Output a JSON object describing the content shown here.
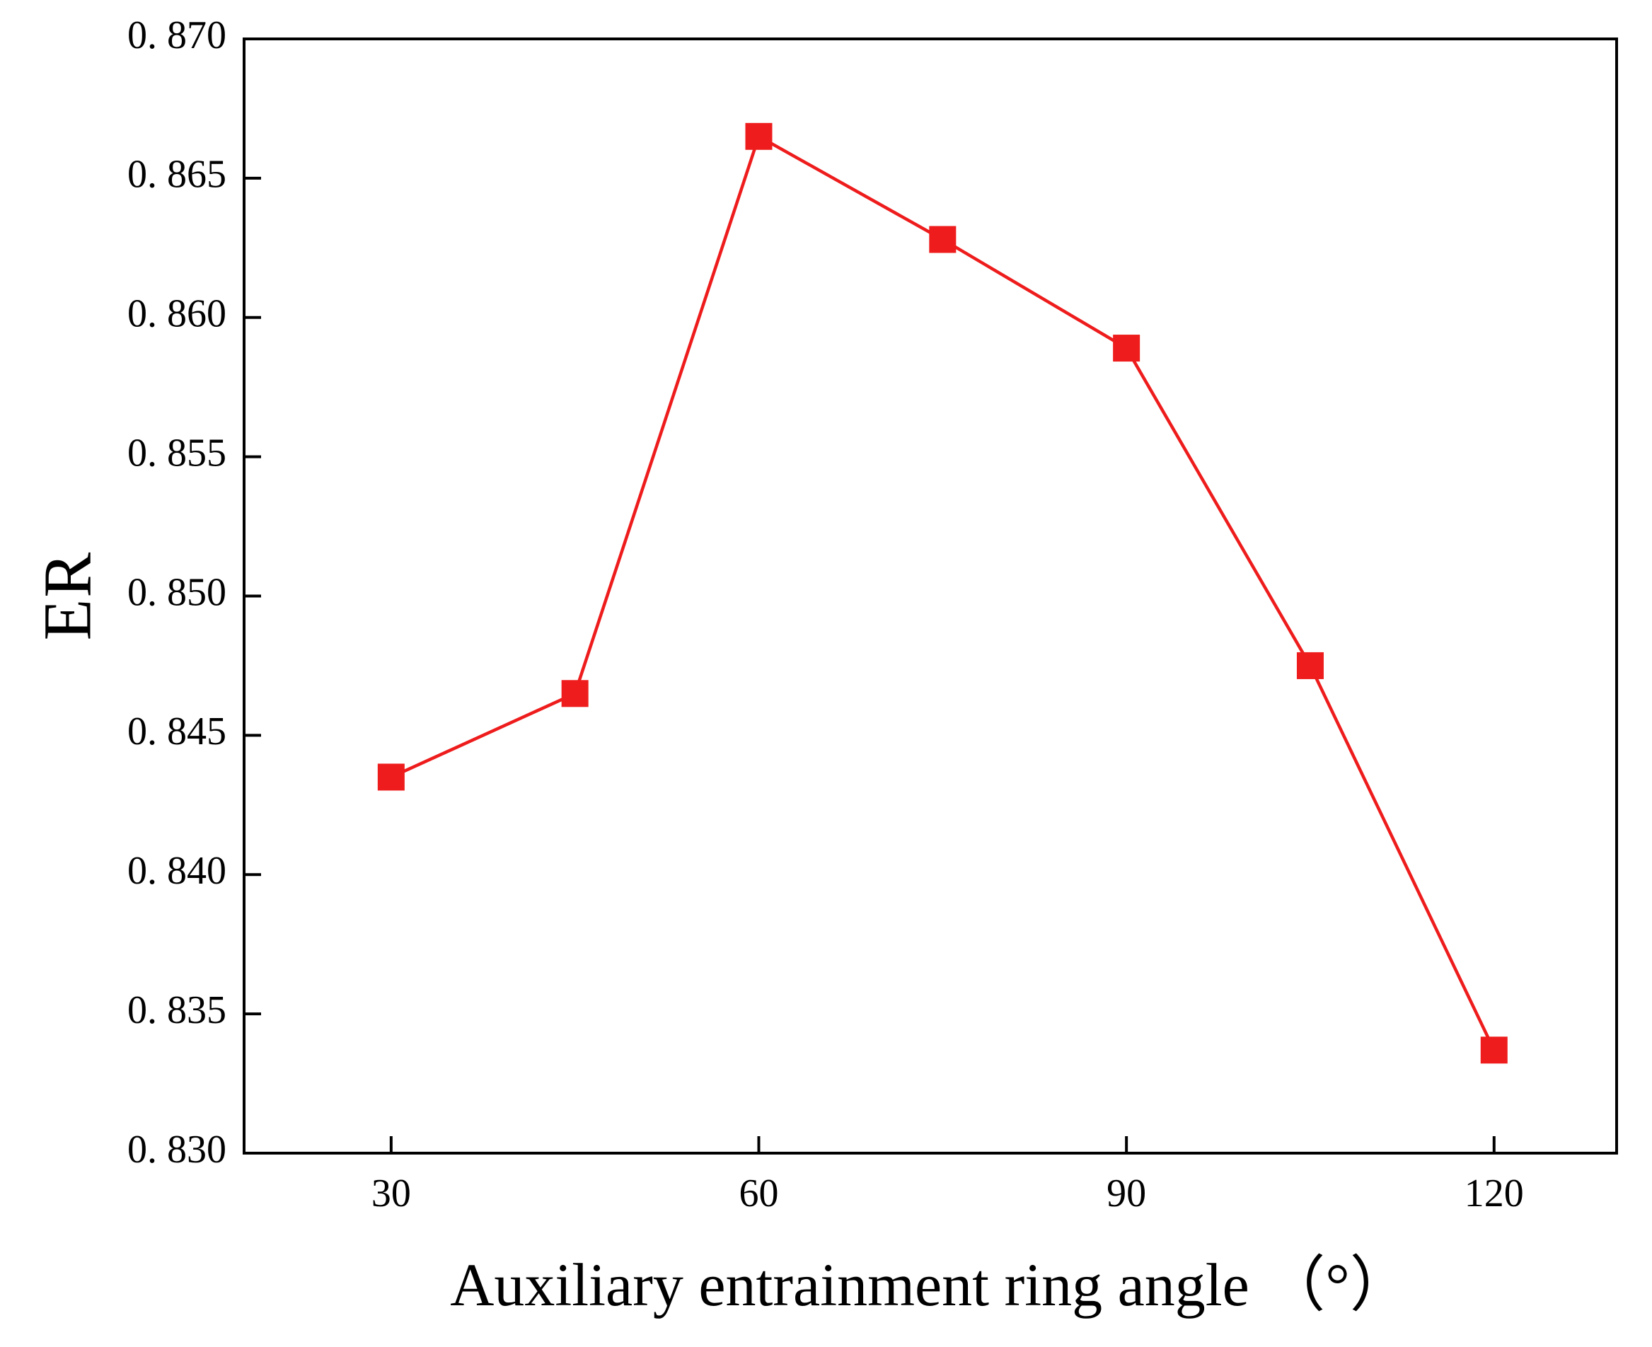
{
  "figure": {
    "background": "#ffffff",
    "frame_color": "#000000"
  },
  "chart_data": {
    "type": "line",
    "title": "",
    "xlabel": "Auxiliary entrainment ring angle （°）",
    "ylabel": "ER",
    "x": [
      30,
      45,
      60,
      75,
      90,
      105,
      120
    ],
    "series": [
      {
        "name": "ER",
        "color": "#ee1c1c",
        "marker": "square",
        "values": [
          0.8435,
          0.8465,
          0.8665,
          0.8628,
          0.8589,
          0.8475,
          0.8337
        ]
      }
    ],
    "xlim": [
      18,
      130
    ],
    "ylim": [
      0.83,
      0.87
    ],
    "x_ticks": [
      30,
      60,
      90,
      120
    ],
    "x_tick_labels": [
      "30",
      "60",
      "90",
      "120"
    ],
    "y_ticks": [
      0.83,
      0.835,
      0.84,
      0.845,
      0.85,
      0.855,
      0.86,
      0.865,
      0.87
    ],
    "y_tick_labels": [
      "0. 830",
      "0. 835",
      "0. 840",
      "0. 845",
      "0. 850",
      "0. 855",
      "0. 860",
      "0. 865",
      "0. 870"
    ],
    "grid": false,
    "legend": "none"
  }
}
